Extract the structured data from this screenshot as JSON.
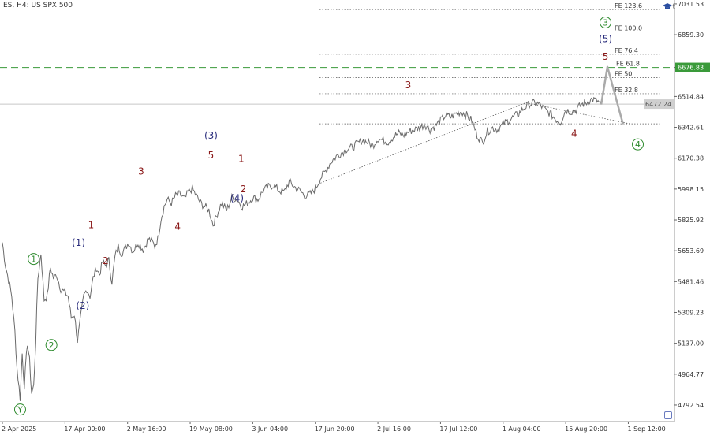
{
  "header": {
    "symbol": "ES, H4:  US SPX 500"
  },
  "corner": {
    "label": "t"
  },
  "current_price_label": "6472.24",
  "target_price_label": "6676.83",
  "chart_data": {
    "type": "line",
    "title": "ES, H4:  US SPX 500",
    "ylim": [
      4700,
      7040
    ],
    "y_ticks": [
      "7031.53",
      "6859.30",
      "6676.83",
      "6514.84",
      "6342.61",
      "6170.38",
      "5998.15",
      "5825.92",
      "5653.69",
      "5481.46",
      "5309.23",
      "5137.00",
      "4964.77",
      "4792.54"
    ],
    "y_tick_values": [
      7031.53,
      6859.3,
      6676.83,
      6514.84,
      6342.61,
      6170.38,
      5998.15,
      5825.92,
      5653.69,
      5481.46,
      5309.23,
      5137.0,
      4964.77,
      4792.54
    ],
    "x_ticks": [
      "2 Apr 2025",
      "17 Apr 00:00",
      "2 May 16:00",
      "19 May 08:00",
      "3 Jun 04:00",
      "17 Jun 20:00",
      "2 Jul 16:00",
      "17 Jul 12:00",
      "1 Aug 04:00",
      "15 Aug 20:00",
      "1 Sep 12:00"
    ],
    "x_tick_index": [
      0,
      60,
      120,
      180,
      240,
      300,
      360,
      420,
      480,
      540,
      600
    ],
    "price_anchors": [
      [
        0,
        5700
      ],
      [
        3,
        5570
      ],
      [
        6,
        5490
      ],
      [
        9,
        5400
      ],
      [
        12,
        5200
      ],
      [
        14,
        5000
      ],
      [
        17,
        4830
      ],
      [
        19,
        5080
      ],
      [
        21,
        4900
      ],
      [
        24,
        5140
      ],
      [
        26,
        5040
      ],
      [
        28,
        4860
      ],
      [
        30,
        4900
      ],
      [
        32,
        5150
      ],
      [
        34,
        5500
      ],
      [
        37,
        5640
      ],
      [
        40,
        5380
      ],
      [
        43,
        5400
      ],
      [
        46,
        5560
      ],
      [
        49,
        5500
      ],
      [
        52,
        5520
      ],
      [
        56,
        5440
      ],
      [
        60,
        5420
      ],
      [
        63,
        5400
      ],
      [
        66,
        5280
      ],
      [
        69,
        5300
      ],
      [
        72,
        5150
      ],
      [
        75,
        5280
      ],
      [
        78,
        5400
      ],
      [
        81,
        5440
      ],
      [
        84,
        5400
      ],
      [
        87,
        5500
      ],
      [
        90,
        5560
      ],
      [
        93,
        5520
      ],
      [
        96,
        5590
      ],
      [
        99,
        5570
      ],
      [
        102,
        5600
      ],
      [
        105,
        5480
      ],
      [
        108,
        5620
      ],
      [
        111,
        5680
      ],
      [
        114,
        5640
      ],
      [
        117,
        5660
      ],
      [
        121,
        5700
      ],
      [
        125,
        5650
      ],
      [
        130,
        5700
      ],
      [
        135,
        5660
      ],
      [
        140,
        5720
      ],
      [
        144,
        5700
      ],
      [
        146,
        5680
      ],
      [
        149,
        5720
      ],
      [
        152,
        5830
      ],
      [
        155,
        5900
      ],
      [
        158,
        5940
      ],
      [
        162,
        5920
      ],
      [
        166,
        5960
      ],
      [
        170,
        5970
      ],
      [
        175,
        5940
      ],
      [
        178,
        5980
      ],
      [
        182,
        6000
      ],
      [
        186,
        5960
      ],
      [
        190,
        5920
      ],
      [
        194,
        5900
      ],
      [
        198,
        5880
      ],
      [
        202,
        5800
      ],
      [
        206,
        5860
      ],
      [
        210,
        5920
      ],
      [
        215,
        5880
      ],
      [
        220,
        5950
      ],
      [
        225,
        5940
      ],
      [
        230,
        5900
      ],
      [
        235,
        5920
      ],
      [
        240,
        5950
      ],
      [
        245,
        5940
      ],
      [
        250,
        5990
      ],
      [
        255,
        6010
      ],
      [
        260,
        6020
      ],
      [
        265,
        5990
      ],
      [
        270,
        5980
      ],
      [
        275,
        6040
      ],
      [
        280,
        6010
      ],
      [
        285,
        5990
      ],
      [
        290,
        5960
      ],
      [
        295,
        5970
      ],
      [
        300,
        6000
      ],
      [
        305,
        6060
      ],
      [
        310,
        6100
      ],
      [
        315,
        6150
      ],
      [
        320,
        6180
      ],
      [
        325,
        6200
      ],
      [
        330,
        6220
      ],
      [
        335,
        6230
      ],
      [
        340,
        6250
      ],
      [
        345,
        6270
      ],
      [
        350,
        6260
      ],
      [
        355,
        6240
      ],
      [
        360,
        6280
      ],
      [
        365,
        6270
      ],
      [
        370,
        6260
      ],
      [
        375,
        6290
      ],
      [
        380,
        6310
      ],
      [
        385,
        6300
      ],
      [
        390,
        6320
      ],
      [
        395,
        6330
      ],
      [
        400,
        6340
      ],
      [
        405,
        6360
      ],
      [
        410,
        6330
      ],
      [
        415,
        6350
      ],
      [
        420,
        6380
      ],
      [
        425,
        6410
      ],
      [
        430,
        6400
      ],
      [
        435,
        6420
      ],
      [
        440,
        6430
      ],
      [
        445,
        6410
      ],
      [
        450,
        6380
      ],
      [
        455,
        6300
      ],
      [
        460,
        6260
      ],
      [
        465,
        6320
      ],
      [
        470,
        6340
      ],
      [
        475,
        6330
      ],
      [
        480,
        6360
      ],
      [
        485,
        6380
      ],
      [
        490,
        6400
      ],
      [
        495,
        6420
      ],
      [
        500,
        6450
      ],
      [
        505,
        6470
      ],
      [
        510,
        6480
      ],
      [
        515,
        6470
      ],
      [
        520,
        6440
      ],
      [
        525,
        6420
      ],
      [
        530,
        6390
      ],
      [
        535,
        6370
      ],
      [
        540,
        6440
      ],
      [
        545,
        6430
      ],
      [
        550,
        6440
      ],
      [
        555,
        6470
      ],
      [
        560,
        6480
      ],
      [
        565,
        6500
      ],
      [
        570,
        6490
      ],
      [
        574,
        6470
      ]
    ],
    "projection": [
      [
        574,
        6470
      ],
      [
        580,
        6680
      ],
      [
        595,
        6360
      ]
    ],
    "fib_levels": [
      {
        "label": "FE 123.6",
        "value": 7000
      },
      {
        "label": "FE 100.0",
        "value": 6875
      },
      {
        "label": "FE 76.4",
        "value": 6750
      },
      {
        "label": "FE 61.8",
        "value": 6676.83
      },
      {
        "label": "FE 50",
        "value": 6620
      },
      {
        "label": "FE 32.8",
        "value": 6530
      },
      {
        "label": "",
        "value": 6362
      }
    ],
    "current_price": 6472.24,
    "target_price": 6676.83,
    "trendline": [
      [
        300,
        6020
      ],
      [
        502,
        6480
      ]
    ],
    "channel_line": [
      [
        502,
        6480
      ],
      [
        602,
        6362
      ]
    ],
    "wave_labels": [
      {
        "text": "Y",
        "color": "#2e8b2e",
        "circle": true,
        "i": 17,
        "v": 4750
      },
      {
        "text": "1",
        "color": "#2e8b2e",
        "circle": true,
        "i": 30,
        "v": 5590
      },
      {
        "text": "2",
        "color": "#2e8b2e",
        "circle": true,
        "i": 47,
        "v": 5110
      },
      {
        "text": "(1)",
        "color": "#2a2d7c",
        "circle": false,
        "i": 73,
        "v": 5680
      },
      {
        "text": "(2)",
        "color": "#2a2d7c",
        "circle": false,
        "i": 77,
        "v": 5330
      },
      {
        "text": "1",
        "color": "#8b1a1a",
        "circle": false,
        "i": 85,
        "v": 5780
      },
      {
        "text": "2",
        "color": "#8b1a1a",
        "circle": false,
        "i": 99,
        "v": 5580
      },
      {
        "text": "3",
        "color": "#8b1a1a",
        "circle": false,
        "i": 133,
        "v": 6080
      },
      {
        "text": "4",
        "color": "#8b1a1a",
        "circle": false,
        "i": 168,
        "v": 5770
      },
      {
        "text": "(3)",
        "color": "#2a2d7c",
        "circle": false,
        "i": 200,
        "v": 6280
      },
      {
        "text": "5",
        "color": "#8b1a1a",
        "circle": false,
        "i": 200,
        "v": 6170
      },
      {
        "text": "1",
        "color": "#8b1a1a",
        "circle": false,
        "i": 229,
        "v": 6150
      },
      {
        "text": "2",
        "color": "#8b1a1a",
        "circle": false,
        "i": 231,
        "v": 5980
      },
      {
        "text": "(4)",
        "color": "#2a2d7c",
        "circle": false,
        "i": 225,
        "v": 5930
      },
      {
        "text": "3",
        "color": "#8b1a1a",
        "circle": false,
        "i": 389,
        "v": 6560
      },
      {
        "text": "4",
        "color": "#8b1a1a",
        "circle": false,
        "i": 412,
        "v": 6290
      },
      {
        "text": "3",
        "color": "#2e8b2e",
        "circle": true,
        "i": 442,
        "v": 6910
      },
      {
        "text": "(5)",
        "color": "#2a2d7c",
        "circle": false,
        "i": 442,
        "v": 6818
      },
      {
        "text": "5",
        "color": "#8b1a1a",
        "circle": false,
        "i": 442,
        "v": 6720
      },
      {
        "text": "4",
        "color": "#2e8b2e",
        "circle": true,
        "i": 473,
        "v": 6230
      }
    ]
  }
}
